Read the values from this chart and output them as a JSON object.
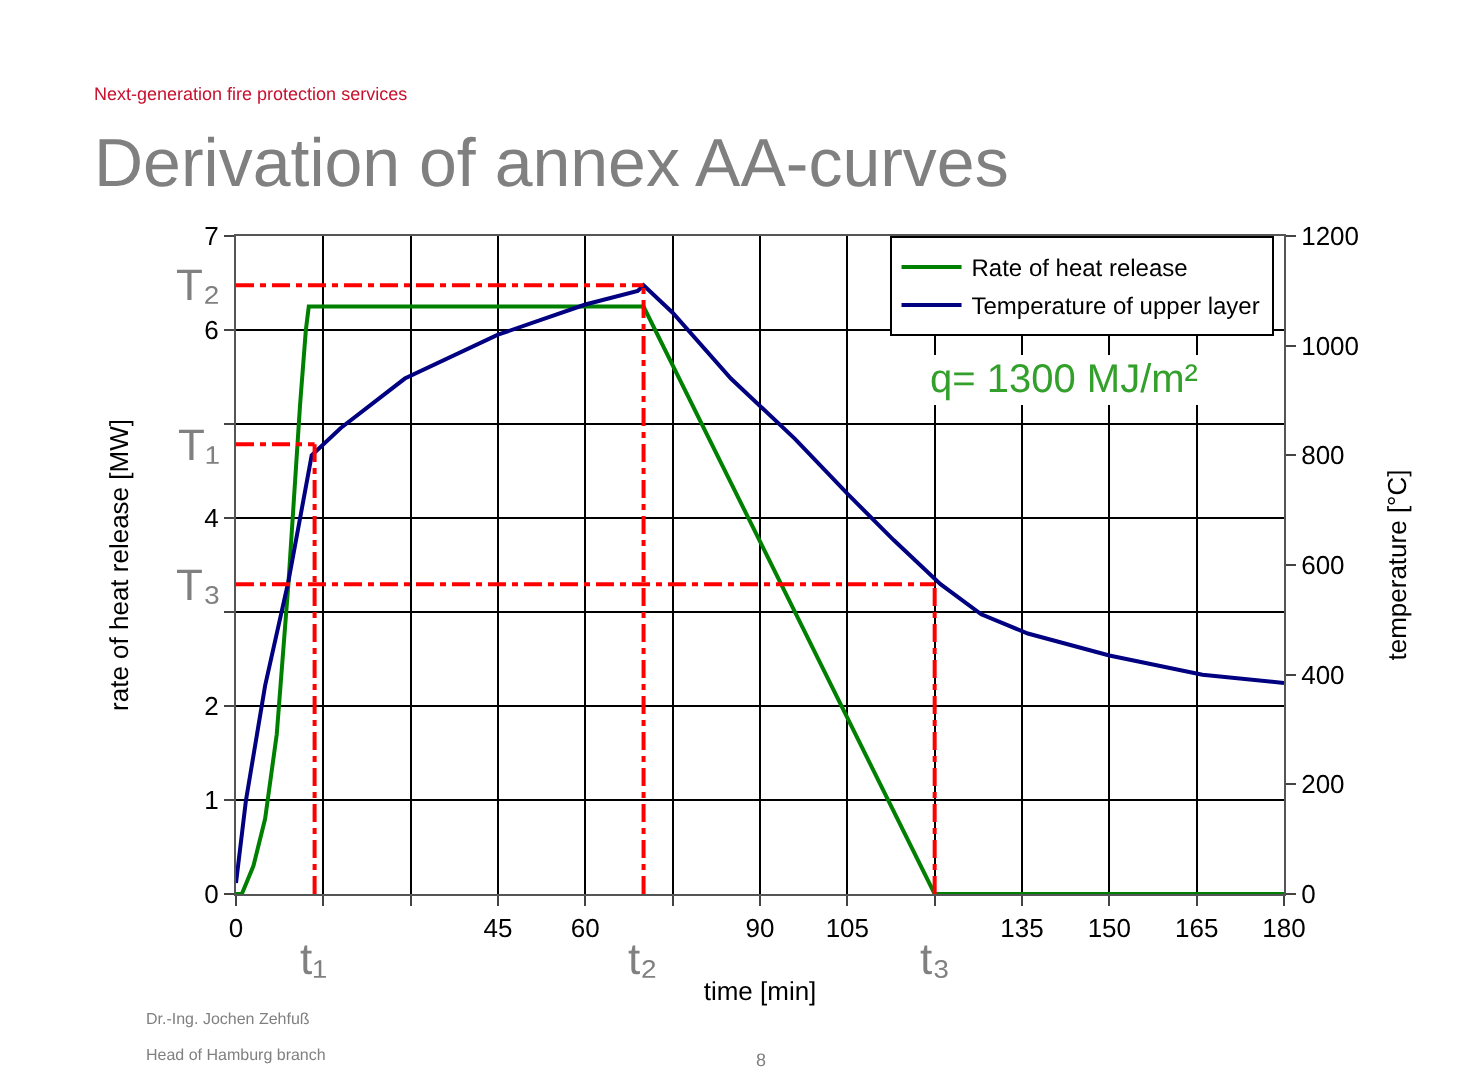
{
  "chart_data": {
    "type": "line",
    "title": "Derivation of annex AA-curves",
    "subtitle": "Next-generation fire protection services",
    "xlabel": "time [min]",
    "ylabel": "rate of heat release [MW]",
    "y2label": "temperature [°C]",
    "series": [
      {
        "name": "Rate of heat release",
        "color": "#008000",
        "x": [
          0,
          1,
          3,
          5,
          7,
          9,
          11,
          12,
          12.5,
          70,
          120,
          180
        ],
        "values": [
          0,
          0,
          0.3,
          0.8,
          1.7,
          3.3,
          5.2,
          6,
          6.25,
          6.25,
          0,
          0
        ]
      },
      {
        "name": "Temperature of upper layer",
        "color": "#000080",
        "axis": "y2",
        "x": [
          0,
          1.7,
          5,
          9,
          13,
          18,
          29,
          45,
          60,
          69,
          70,
          75,
          85,
          96,
          105,
          113,
          121,
          128,
          136,
          150,
          166,
          180
        ],
        "values": [
          20,
          170,
          380,
          570,
          800,
          850,
          940,
          1020,
          1075,
          1100,
          1110,
          1060,
          940,
          830,
          730,
          645,
          565,
          510,
          475,
          435,
          400,
          385
        ]
      }
    ],
    "xlim": [
      0,
      180
    ],
    "xticks": [
      0,
      {
        "value": 15,
        "label": null
      },
      {
        "value": 30,
        "label": null
      },
      45,
      60,
      {
        "value": 75,
        "label": null
      },
      90,
      105,
      {
        "value": 120,
        "label": null
      },
      135,
      150,
      165,
      180
    ],
    "ylim": [
      0,
      7
    ],
    "yticks": [
      0,
      1,
      2,
      {
        "value": 3,
        "label": null
      },
      4,
      {
        "value": 5,
        "label": null
      },
      6,
      7
    ],
    "y2lim": [
      0,
      1200
    ],
    "y2ticks": [
      0,
      200,
      400,
      600,
      800,
      1000,
      1200
    ],
    "ref_lines": [
      {
        "axis": "y2",
        "value": 820,
        "label": "T₁",
        "color": "#ff0000",
        "line_style": "dashdot"
      },
      {
        "axis": "y2",
        "value": 1110,
        "label": "T₂",
        "color": "#ff0000",
        "line_style": "dashdot"
      },
      {
        "axis": "y2",
        "value": 565,
        "label": "T₃",
        "color": "#ff0000",
        "line_style": "dashdot"
      },
      {
        "axis": "x",
        "value": 13.5,
        "label": "t₁",
        "color": "#ff0000",
        "line_style": "dashdot"
      },
      {
        "axis": "x",
        "value": 70,
        "label": "t₂",
        "color": "#ff0000",
        "line_style": "dashdot"
      },
      {
        "axis": "x",
        "value": 120,
        "label": "t₃",
        "color": "#ff0000",
        "line_style": "dashdot"
      }
    ],
    "annotations": [
      "q= 1300 MJ/m²",
      "Dr.-Ing. Jochen Zehfuß",
      "Head of Hamburg branch",
      "8"
    ],
    "grid": true,
    "legend": "top right",
    "marker": "none",
    "line_style": "solid"
  }
}
